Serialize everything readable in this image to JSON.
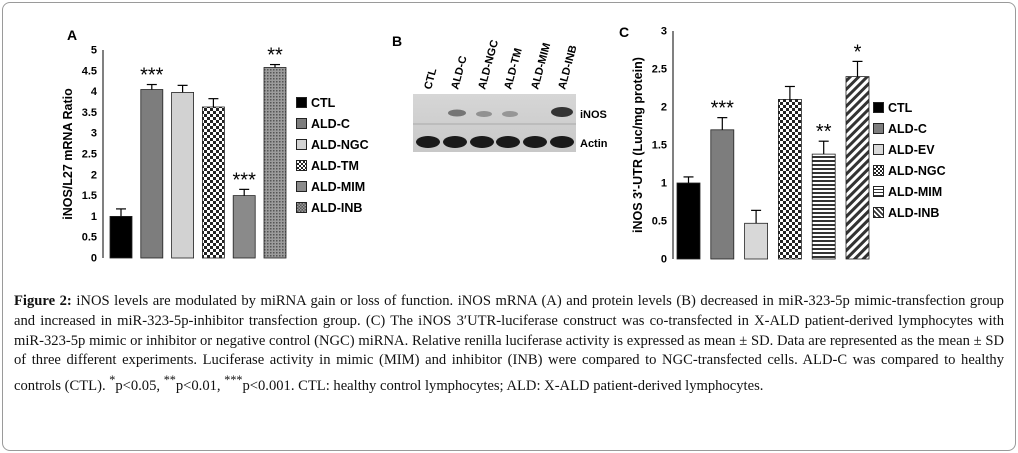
{
  "panels": {
    "a_letter": "A",
    "b_letter": "B",
    "c_letter": "C"
  },
  "blot": {
    "lanes": [
      "CTL",
      "ALD-C",
      "ALD-NGC",
      "ALD-TM",
      "ALD-MIM",
      "ALD-INB"
    ],
    "bands": [
      "iNOS",
      "Actin"
    ]
  },
  "caption": {
    "fig_label": "Figure 2:",
    "p1": " iNOS levels are modulated by miRNA gain or loss of function. iNOS mRNA (A) and protein levels (B) decreased in miR-323-5p mimic-transfection group and increased in miR-323-5p-inhibitor transfection group. (C) The iNOS 3′UTR-luciferase construct was co-transfected in X-ALD patient-derived lymphocytes with miR-323-5p mimic or inhibitor or negative control (NGC) miRNA. Relative renilla luciferase activity is expressed as mean ± SD. Data are represented as the mean ± SD of three different experiments. Luciferase activity in mimic (MIM) and inhibitor (INB) were compared to NGC-transfected cells. ALD-C was compared to healthy controls (CTL). ",
    "sup1": "*",
    "p2": "p<0.05, ",
    "sup2": "**",
    "p3": "p<0.01, ",
    "sup3": "***",
    "p4": "p<0.001. CTL: healthy control lymphocytes; ALD: X-ALD patient-derived lymphocytes."
  },
  "chart_data": [
    {
      "type": "bar",
      "panel": "A",
      "ylabel": "iNOS/L27 mRNA Ratio",
      "ylim": [
        0,
        5
      ],
      "yticks": [
        "0",
        "0.5",
        "1",
        "1.5",
        "2",
        "2.5",
        "3",
        "3.5",
        "4",
        "4.5",
        "5"
      ],
      "categories": [
        "CTL",
        "ALD-C",
        "ALD-NGC",
        "ALD-TM",
        "ALD-MIM",
        "ALD-INB"
      ],
      "values": [
        1.0,
        4.05,
        3.98,
        3.63,
        1.5,
        4.58
      ],
      "errors": [
        0.18,
        0.12,
        0.17,
        0.2,
        0.15,
        0.07
      ],
      "annotations": [
        "",
        "***",
        "",
        "",
        "***",
        "**"
      ],
      "legend": [
        "CTL",
        "ALD-C",
        "ALD-NGC",
        "ALD-TM",
        "ALD-MIM",
        "ALD-INB"
      ],
      "colors": [
        "#000000",
        "#7d7d7d",
        "#d2d2d2",
        "checker",
        "#8a8a8a",
        "dots"
      ]
    },
    {
      "type": "bar",
      "panel": "C",
      "ylabel": "iNOS 3'-UTR (Luc/mg protein)",
      "ylim": [
        0,
        3
      ],
      "yticks": [
        "0",
        "0.5",
        "1",
        "1.5",
        "2",
        "2.5",
        "3"
      ],
      "categories": [
        "CTL",
        "ALD-C",
        "ALD-EV",
        "ALD-NGC",
        "ALD-MIM",
        "ALD-INB"
      ],
      "values": [
        1.0,
        1.7,
        0.47,
        2.1,
        1.38,
        2.4
      ],
      "errors": [
        0.08,
        0.16,
        0.17,
        0.17,
        0.17,
        0.2
      ],
      "annotations": [
        "",
        "***",
        "",
        "",
        "**",
        "*"
      ],
      "legend": [
        "CTL",
        "ALD-C",
        "ALD-EV",
        "ALD-NGC",
        "ALD-MIM",
        "ALD-INB"
      ],
      "colors": [
        "#000000",
        "#7d7d7d",
        "#d8d8d8",
        "checker",
        "hlines",
        "diag"
      ]
    }
  ]
}
